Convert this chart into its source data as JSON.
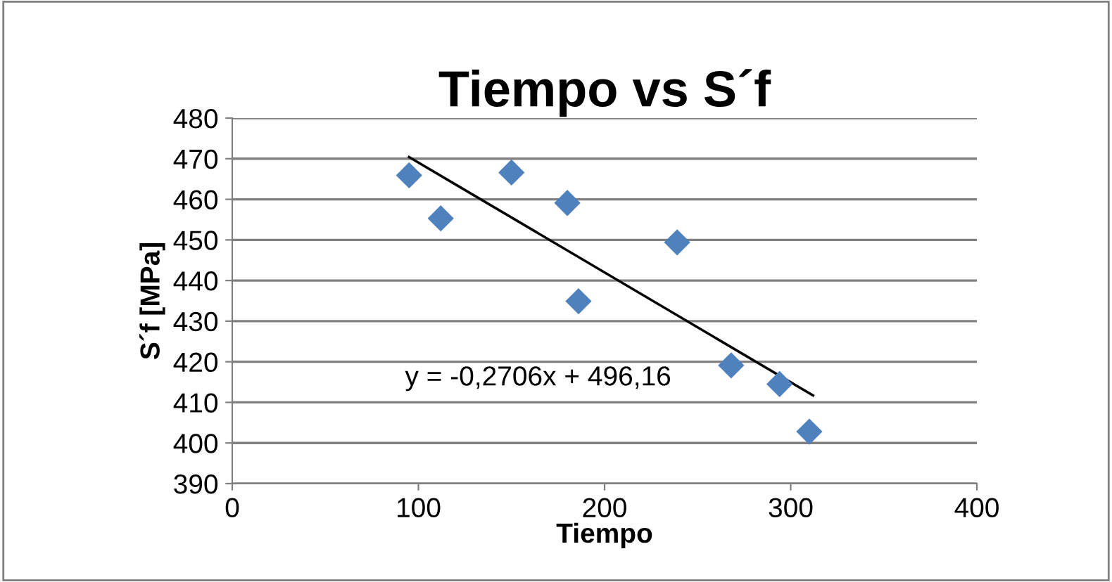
{
  "chart_data": {
    "type": "scatter",
    "title": "Tiempo vs S´f",
    "xlabel": "Tiempo",
    "ylabel": "S´f [MPa]",
    "series": [
      {
        "color": "#4f81bd",
        "marker": "diamond",
        "x": [
          95,
          112,
          150,
          180,
          186,
          239,
          268,
          294,
          310
        ],
        "values": [
          465.9,
          455.3,
          466.6,
          459.1,
          434.9,
          449.4,
          419.1,
          414.5,
          402.8
        ]
      },
      {
        "type": "line",
        "color": "#000000",
        "marker": "none",
        "x": [
          95,
          312
        ],
        "values": [
          470.4,
          411.7
        ]
      }
    ],
    "annotations": [
      "y = -0,2706x + 496,16"
    ],
    "xlim": [
      0,
      400
    ],
    "xticks": [
      0,
      100,
      200,
      300,
      400
    ],
    "ylim": [
      390,
      480
    ],
    "yticks": [
      390,
      400,
      410,
      420,
      430,
      440,
      450,
      460,
      470,
      480
    ],
    "grid": "y"
  }
}
